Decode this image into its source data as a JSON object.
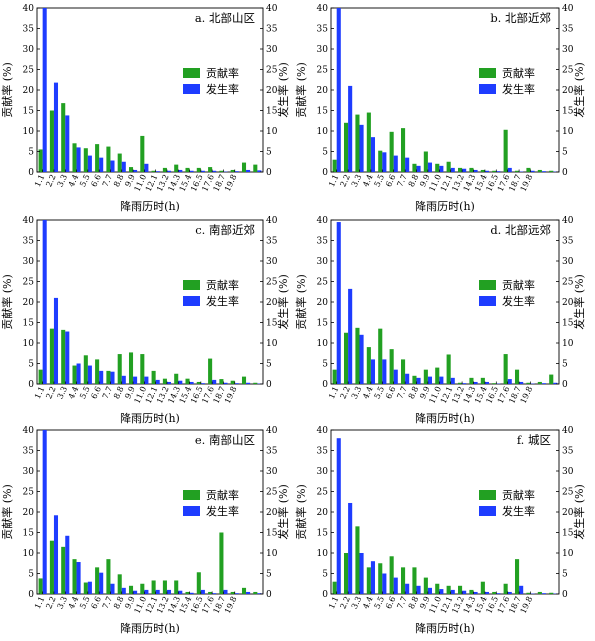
{
  "colors": {
    "contribution": "#22a022",
    "occurrence": "#1e3cff"
  },
  "chart_data": [
    {
      "type": "bar",
      "title": "a. 北部山区",
      "xlabel": "降雨历时(h)",
      "ylabel_left": "贡献率 (%)",
      "ylabel_right": "发生率 (%)",
      "ylim": [
        0,
        40
      ],
      "yticks": [
        0,
        5,
        10,
        15,
        20,
        25,
        30,
        35,
        40
      ],
      "categories": [
        "1",
        "2",
        "3",
        "4",
        "5",
        "6",
        "7",
        "8",
        "9",
        "10",
        "11",
        "12",
        "13",
        "14",
        "15",
        "16",
        "17",
        "18",
        "19",
        "20"
      ],
      "tick_labels": [
        "1.1",
        "2.2",
        "3.3",
        "4.4",
        "5.5",
        "6.6",
        "7.7",
        "8.8",
        "9.9",
        "11.0",
        "12.1",
        "13.2",
        "14.3",
        "15.4",
        "16.5",
        "17.6",
        "18.7",
        "19.8"
      ],
      "series": [
        {
          "name": "贡献率",
          "values": [
            5.5,
            15.0,
            16.8,
            7.0,
            5.8,
            6.8,
            6.2,
            4.5,
            1.2,
            8.8,
            0.3,
            1.0,
            1.8,
            1.0,
            1.0,
            1.2,
            0.3,
            0.5,
            2.3,
            1.8
          ]
        },
        {
          "name": "发生率",
          "values": [
            40.0,
            21.8,
            13.8,
            6.0,
            4.0,
            3.5,
            2.8,
            2.5,
            0.5,
            2.0,
            0.2,
            0.3,
            0.5,
            0.3,
            0.3,
            0.3,
            0.1,
            0.2,
            0.5,
            0.4
          ]
        }
      ]
    },
    {
      "type": "bar",
      "title": "b. 北部近郊",
      "xlabel": "降雨历时(h)",
      "ylabel_left": "贡献率 (%)",
      "ylabel_right": "发生率 (%)",
      "ylim": [
        0,
        40
      ],
      "yticks": [
        0,
        5,
        10,
        15,
        20,
        25,
        30,
        35,
        40
      ],
      "categories": [
        "1",
        "2",
        "3",
        "4",
        "5",
        "6",
        "7",
        "8",
        "9",
        "10",
        "11",
        "12",
        "13",
        "14",
        "15",
        "16",
        "17",
        "18",
        "19",
        "20"
      ],
      "tick_labels": [
        "1.1",
        "2.2",
        "3.3",
        "4.4",
        "5.5",
        "6.6",
        "7.7",
        "8.8",
        "9.9",
        "11.0",
        "12.1",
        "13.2",
        "14.3",
        "15.4",
        "16.5",
        "17.6",
        "18.7",
        "19.8"
      ],
      "series": [
        {
          "name": "贡献率",
          "values": [
            3.0,
            12.0,
            14.0,
            14.5,
            5.2,
            9.8,
            10.7,
            2.0,
            5.0,
            2.0,
            2.5,
            1.0,
            1.0,
            0.5,
            0.3,
            10.3,
            0.3,
            1.0,
            0.5,
            0.3
          ]
        },
        {
          "name": "发生率",
          "values": [
            40.0,
            21.0,
            11.5,
            8.5,
            4.8,
            4.0,
            3.5,
            1.5,
            2.3,
            1.5,
            1.0,
            0.8,
            0.5,
            0.3,
            0.2,
            1.0,
            0.1,
            0.3,
            0.2,
            0.1
          ]
        }
      ]
    },
    {
      "type": "bar",
      "title": "c. 南部近郊",
      "xlabel": "降雨历时(h)",
      "ylabel_left": "贡献率 (%)",
      "ylabel_right": "发生率 (%)",
      "ylim": [
        0,
        40
      ],
      "yticks": [
        0,
        5,
        10,
        15,
        20,
        25,
        30,
        35,
        40
      ],
      "categories": [
        "1",
        "2",
        "3",
        "4",
        "5",
        "6",
        "7",
        "8",
        "9",
        "10",
        "11",
        "12",
        "13",
        "14",
        "15",
        "16",
        "17",
        "18",
        "19",
        "20"
      ],
      "tick_labels": [
        "1.1",
        "2.2",
        "3.3",
        "4.4",
        "5.5",
        "6.6",
        "7.7",
        "8.8",
        "9.9",
        "11.0",
        "12.1",
        "13.2",
        "14.3",
        "15.4",
        "16.5",
        "17.6",
        "18.7",
        "19.8"
      ],
      "series": [
        {
          "name": "贡献率",
          "values": [
            3.5,
            13.5,
            13.2,
            4.5,
            7.0,
            6.0,
            3.2,
            7.3,
            7.7,
            7.3,
            3.2,
            1.3,
            2.5,
            1.3,
            0.5,
            6.2,
            1.2,
            0.8,
            1.8,
            0.3
          ]
        },
        {
          "name": "发生率",
          "values": [
            40.0,
            21.0,
            12.8,
            5.0,
            4.5,
            3.2,
            3.0,
            2.0,
            1.8,
            1.8,
            1.0,
            0.5,
            0.8,
            0.5,
            0.2,
            1.0,
            0.3,
            0.2,
            0.3,
            0.1
          ]
        }
      ]
    },
    {
      "type": "bar",
      "title": "d. 北部远郊",
      "xlabel": "降雨历时(h)",
      "ylabel_left": "贡献率 (%)",
      "ylabel_right": "发生率 (%)",
      "ylim": [
        0,
        40
      ],
      "yticks": [
        0,
        5,
        10,
        15,
        20,
        25,
        30,
        35,
        40
      ],
      "categories": [
        "1",
        "2",
        "3",
        "4",
        "5",
        "6",
        "7",
        "8",
        "9",
        "10",
        "11",
        "12",
        "13",
        "14",
        "15",
        "16",
        "17",
        "18",
        "19",
        "20"
      ],
      "tick_labels": [
        "1.1",
        "2.2",
        "3.3",
        "4.4",
        "5.5",
        "6.6",
        "7.7",
        "8.8",
        "9.9",
        "11.0",
        "12.1",
        "13.2",
        "14.3",
        "15.4",
        "16.5",
        "17.6",
        "18.7",
        "19.8"
      ],
      "series": [
        {
          "name": "贡献率",
          "values": [
            3.5,
            12.5,
            13.7,
            9.0,
            13.5,
            8.5,
            6.0,
            2.0,
            3.5,
            4.0,
            7.2,
            0.3,
            1.5,
            1.5,
            0.2,
            7.3,
            3.5,
            0.3,
            0.5,
            2.3
          ]
        },
        {
          "name": "发生率",
          "values": [
            39.5,
            23.2,
            12.0,
            6.0,
            6.0,
            3.5,
            2.5,
            1.5,
            1.8,
            1.8,
            1.5,
            0.2,
            0.5,
            0.5,
            0.1,
            1.2,
            0.5,
            0.1,
            0.2,
            0.3
          ]
        }
      ]
    },
    {
      "type": "bar",
      "title": "e. 南部山区",
      "xlabel": "降雨历时(h)",
      "ylabel_left": "贡献率 (%)",
      "ylabel_right": "发生率 (%)",
      "ylim": [
        0,
        40
      ],
      "yticks": [
        0,
        5,
        10,
        15,
        20,
        25,
        30,
        35,
        40
      ],
      "categories": [
        "1",
        "2",
        "3",
        "4",
        "5",
        "6",
        "7",
        "8",
        "9",
        "10",
        "11",
        "12",
        "13",
        "14",
        "15",
        "16",
        "17",
        "18",
        "19",
        "20"
      ],
      "tick_labels": [
        "1.1",
        "2.2",
        "3.3",
        "4.4",
        "5.5",
        "6.6",
        "7.7",
        "8.8",
        "9.9",
        "11.0",
        "12.1",
        "13.2",
        "14.3",
        "15.4",
        "16.5",
        "17.6",
        "18.7",
        "19.8"
      ],
      "series": [
        {
          "name": "贡献率",
          "values": [
            3.8,
            13.0,
            11.5,
            8.5,
            2.8,
            6.5,
            8.5,
            4.8,
            2.0,
            2.5,
            3.3,
            3.3,
            3.3,
            0.5,
            5.3,
            0.5,
            15.0,
            0.5,
            1.5,
            0.5
          ]
        },
        {
          "name": "发生率",
          "values": [
            40.0,
            19.2,
            14.2,
            7.8,
            3.0,
            5.2,
            2.5,
            1.5,
            0.8,
            1.0,
            1.0,
            1.0,
            0.8,
            0.3,
            1.0,
            0.2,
            1.0,
            0.2,
            0.5,
            0.2
          ]
        }
      ]
    },
    {
      "type": "bar",
      "title": "f. 城区",
      "xlabel": "降雨历时(h)",
      "ylabel_left": "贡献率 (%)",
      "ylabel_right": "发生率 (%)",
      "ylim": [
        0,
        40
      ],
      "yticks": [
        0,
        5,
        10,
        15,
        20,
        25,
        30,
        35,
        40
      ],
      "categories": [
        "1",
        "2",
        "3",
        "4",
        "5",
        "6",
        "7",
        "8",
        "9",
        "10",
        "11",
        "12",
        "13",
        "14",
        "15",
        "16",
        "17",
        "18",
        "19",
        "20"
      ],
      "tick_labels": [
        "1.1",
        "2.2",
        "3.3",
        "4.4",
        "5.5",
        "6.6",
        "7.7",
        "8.8",
        "9.9",
        "11.0",
        "12.1",
        "13.2",
        "14.3",
        "15.4",
        "16.5",
        "17.6",
        "18.7",
        "19.8"
      ],
      "series": [
        {
          "name": "贡献率",
          "values": [
            3.0,
            10.0,
            16.5,
            6.5,
            7.5,
            9.2,
            6.5,
            6.5,
            4.0,
            2.5,
            2.0,
            2.0,
            1.0,
            3.0,
            0.5,
            2.5,
            8.5,
            0.3,
            0.5,
            0.3
          ]
        },
        {
          "name": "发生率",
          "values": [
            38.0,
            22.2,
            10.0,
            8.0,
            5.0,
            4.0,
            2.5,
            2.0,
            1.5,
            1.2,
            1.0,
            0.8,
            0.5,
            0.5,
            0.2,
            0.5,
            2.0,
            0.1,
            0.2,
            0.1
          ]
        }
      ]
    }
  ]
}
